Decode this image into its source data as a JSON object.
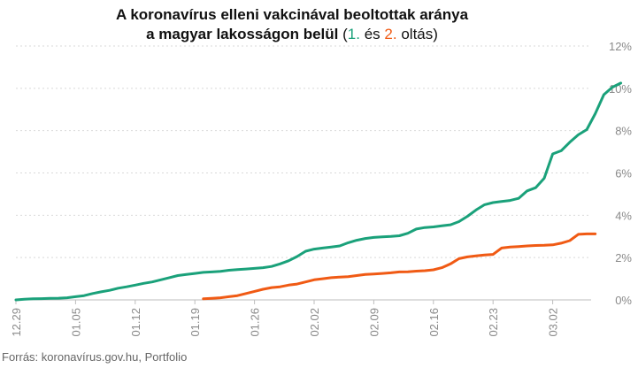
{
  "title": {
    "line1": "A koronavírus elleni vakcinával beoltottak aránya",
    "line2_prefix": "a magyar lakosságon belül",
    "paren_open": "(",
    "dose1": "1.",
    "conj": "és",
    "dose2": "2.",
    "suffix": "oltás)"
  },
  "source": "Forrás: koronavírus.gov.hu, Portfolio",
  "colors": {
    "dose1": "#1aa17a",
    "dose2": "#f05a14",
    "grid": "#d9d9d9",
    "axis": "#8a8a8a"
  },
  "chart_data": {
    "type": "line",
    "title": "A koronavírus elleni vakcinával beoltottak aránya a magyar lakosságon belül (1. és 2. oltás)",
    "x_ticks": [
      "12.29",
      "01.05",
      "01.12",
      "01.19",
      "01.26",
      "02.02",
      "02.09",
      "02.16",
      "02.23",
      "03.02"
    ],
    "y_ticks": [
      "0%",
      "2%",
      "4%",
      "6%",
      "8%",
      "10%",
      "12%"
    ],
    "ylim": [
      0,
      12
    ],
    "y_unit": "%",
    "grid": true,
    "series": [
      {
        "name": "1. oltás",
        "color": "#1aa17a",
        "points": [
          [
            "12.29",
            0.0
          ],
          [
            "12.30",
            0.03
          ],
          [
            "12.31",
            0.05
          ],
          [
            "01.01",
            0.06
          ],
          [
            "01.02",
            0.07
          ],
          [
            "01.03",
            0.08
          ],
          [
            "01.04",
            0.1
          ],
          [
            "01.05",
            0.15
          ],
          [
            "01.06",
            0.2
          ],
          [
            "01.07",
            0.3
          ],
          [
            "01.08",
            0.38
          ],
          [
            "01.09",
            0.45
          ],
          [
            "01.10",
            0.55
          ],
          [
            "01.11",
            0.62
          ],
          [
            "01.12",
            0.7
          ],
          [
            "01.13",
            0.78
          ],
          [
            "01.14",
            0.85
          ],
          [
            "01.15",
            0.95
          ],
          [
            "01.16",
            1.05
          ],
          [
            "01.17",
            1.15
          ],
          [
            "01.18",
            1.2
          ],
          [
            "01.19",
            1.25
          ],
          [
            "01.20",
            1.3
          ],
          [
            "01.21",
            1.32
          ],
          [
            "01.22",
            1.35
          ],
          [
            "01.23",
            1.4
          ],
          [
            "01.24",
            1.43
          ],
          [
            "01.25",
            1.46
          ],
          [
            "01.26",
            1.49
          ],
          [
            "01.27",
            1.52
          ],
          [
            "01.28",
            1.58
          ],
          [
            "01.29",
            1.7
          ],
          [
            "01.30",
            1.85
          ],
          [
            "01.31",
            2.05
          ],
          [
            "02.01",
            2.3
          ],
          [
            "02.02",
            2.4
          ],
          [
            "02.03",
            2.45
          ],
          [
            "02.04",
            2.5
          ],
          [
            "02.05",
            2.55
          ],
          [
            "02.06",
            2.7
          ],
          [
            "02.07",
            2.82
          ],
          [
            "02.08",
            2.9
          ],
          [
            "02.09",
            2.95
          ],
          [
            "02.10",
            2.98
          ],
          [
            "02.11",
            3.0
          ],
          [
            "02.12",
            3.03
          ],
          [
            "02.13",
            3.15
          ],
          [
            "02.14",
            3.35
          ],
          [
            "02.15",
            3.42
          ],
          [
            "02.16",
            3.45
          ],
          [
            "02.17",
            3.5
          ],
          [
            "02.18",
            3.55
          ],
          [
            "02.19",
            3.7
          ],
          [
            "02.20",
            3.95
          ],
          [
            "02.21",
            4.25
          ],
          [
            "02.22",
            4.5
          ],
          [
            "02.23",
            4.6
          ],
          [
            "02.24",
            4.65
          ],
          [
            "02.25",
            4.7
          ],
          [
            "02.26",
            4.8
          ],
          [
            "02.27",
            5.15
          ],
          [
            "02.28",
            5.3
          ],
          [
            "03.01",
            5.75
          ],
          [
            "03.02",
            6.9
          ],
          [
            "03.03",
            7.05
          ],
          [
            "03.04",
            7.45
          ],
          [
            "03.05",
            7.8
          ],
          [
            "03.06",
            8.05
          ],
          [
            "03.07",
            8.8
          ],
          [
            "03.08",
            9.7
          ],
          [
            "03.09",
            10.05
          ],
          [
            "03.10",
            10.25
          ]
        ]
      },
      {
        "name": "2. oltás",
        "color": "#f05a14",
        "points": [
          [
            "01.20",
            0.05
          ],
          [
            "01.21",
            0.07
          ],
          [
            "01.22",
            0.1
          ],
          [
            "01.23",
            0.15
          ],
          [
            "01.24",
            0.2
          ],
          [
            "01.25",
            0.3
          ],
          [
            "01.26",
            0.4
          ],
          [
            "01.27",
            0.5
          ],
          [
            "01.28",
            0.58
          ],
          [
            "01.29",
            0.62
          ],
          [
            "01.30",
            0.7
          ],
          [
            "01.31",
            0.75
          ],
          [
            "02.01",
            0.85
          ],
          [
            "02.02",
            0.95
          ],
          [
            "02.03",
            1.0
          ],
          [
            "02.04",
            1.05
          ],
          [
            "02.05",
            1.08
          ],
          [
            "02.06",
            1.1
          ],
          [
            "02.07",
            1.15
          ],
          [
            "02.08",
            1.2
          ],
          [
            "02.09",
            1.22
          ],
          [
            "02.10",
            1.25
          ],
          [
            "02.11",
            1.28
          ],
          [
            "02.12",
            1.32
          ],
          [
            "02.13",
            1.33
          ],
          [
            "02.14",
            1.36
          ],
          [
            "02.15",
            1.38
          ],
          [
            "02.16",
            1.42
          ],
          [
            "02.17",
            1.52
          ],
          [
            "02.18",
            1.7
          ],
          [
            "02.19",
            1.95
          ],
          [
            "02.20",
            2.03
          ],
          [
            "02.21",
            2.08
          ],
          [
            "02.22",
            2.12
          ],
          [
            "02.23",
            2.15
          ],
          [
            "02.24",
            2.45
          ],
          [
            "02.25",
            2.5
          ],
          [
            "02.26",
            2.52
          ],
          [
            "02.27",
            2.55
          ],
          [
            "02.28",
            2.57
          ],
          [
            "03.01",
            2.58
          ],
          [
            "03.02",
            2.6
          ],
          [
            "03.03",
            2.68
          ],
          [
            "03.04",
            2.8
          ],
          [
            "03.05",
            3.1
          ],
          [
            "03.06",
            3.12
          ],
          [
            "03.07",
            3.12
          ]
        ]
      }
    ]
  }
}
